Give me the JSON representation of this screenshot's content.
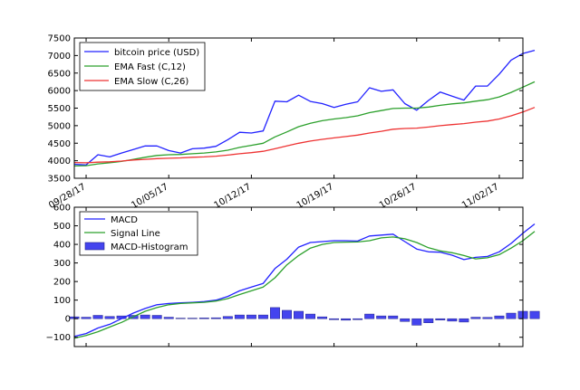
{
  "colors": {
    "price": "#2222ff",
    "fast": "#2ca02c",
    "slow": "#ee3333",
    "macd": "#2222ff",
    "signal": "#2ca02c",
    "hist": "#4444ee"
  },
  "chart_data": [
    {
      "type": "line",
      "title": "",
      "xlabel": "",
      "ylabel": "",
      "ylim": [
        3500,
        7500
      ],
      "yticks": [
        3500,
        4000,
        4500,
        5000,
        5500,
        6000,
        6500,
        7000,
        7500
      ],
      "xtick_labels": [
        {
          "label": "09/28/17",
          "x": 1
        },
        {
          "label": "10/05/17",
          "x": 8
        },
        {
          "label": "10/12/17",
          "x": 15
        },
        {
          "label": "10/19/17",
          "x": 22
        },
        {
          "label": "10/26/17",
          "x": 29
        },
        {
          "label": "11/02/17",
          "x": 36
        }
      ],
      "xlim": [
        0,
        38
      ],
      "series": [
        {
          "name": "bitcoin price (USD)",
          "color_key": "price",
          "values": [
            3900,
            3880,
            4170,
            4110,
            4220,
            4320,
            4420,
            4420,
            4290,
            4220,
            4340,
            4360,
            4410,
            4600,
            4810,
            4790,
            4850,
            5700,
            5680,
            5870,
            5690,
            5630,
            5520,
            5610,
            5680,
            6080,
            5980,
            6020,
            5630,
            5440,
            5720,
            5960,
            5840,
            5730,
            6130,
            6130,
            6470,
            6870,
            7060,
            7150
          ]
        },
        {
          "name": "EMA Fast (C,12)",
          "color_key": "fast",
          "values": [
            3850,
            3860,
            3910,
            3940,
            3980,
            4040,
            4100,
            4150,
            4170,
            4180,
            4200,
            4220,
            4250,
            4300,
            4380,
            4440,
            4500,
            4680,
            4820,
            4970,
            5070,
            5140,
            5190,
            5230,
            5280,
            5370,
            5430,
            5490,
            5500,
            5500,
            5530,
            5580,
            5620,
            5650,
            5700,
            5740,
            5820,
            5950,
            6100,
            6250
          ]
        },
        {
          "name": "EMA Slow (C,26)",
          "color_key": "slow",
          "values": [
            3950,
            3940,
            3960,
            3970,
            3990,
            4020,
            4040,
            4060,
            4070,
            4080,
            4100,
            4110,
            4130,
            4160,
            4200,
            4230,
            4270,
            4340,
            4420,
            4500,
            4560,
            4610,
            4650,
            4690,
            4730,
            4790,
            4840,
            4900,
            4920,
            4930,
            4960,
            5000,
            5030,
            5060,
            5100,
            5130,
            5190,
            5280,
            5390,
            5520
          ]
        }
      ]
    },
    {
      "type": "line",
      "title": "",
      "ylim": [
        -150,
        600
      ],
      "yticks": [
        -100,
        0,
        100,
        200,
        300,
        400,
        500,
        600
      ],
      "xlim": [
        0,
        38
      ],
      "series": [
        {
          "name": "MACD",
          "color_key": "macd",
          "values": [
            -95,
            -80,
            -50,
            -30,
            0,
            30,
            55,
            75,
            82,
            85,
            88,
            92,
            100,
            120,
            150,
            170,
            190,
            270,
            320,
            385,
            410,
            415,
            420,
            420,
            418,
            445,
            450,
            455,
            415,
            375,
            360,
            358,
            342,
            318,
            330,
            335,
            360,
            405,
            460,
            510
          ]
        },
        {
          "name": "Signal Line",
          "color_key": "signal",
          "values": [
            -105,
            -90,
            -70,
            -45,
            -20,
            10,
            40,
            60,
            75,
            82,
            85,
            88,
            95,
            108,
            130,
            150,
            170,
            220,
            290,
            340,
            380,
            400,
            410,
            412,
            413,
            420,
            435,
            440,
            430,
            410,
            382,
            365,
            355,
            340,
            322,
            328,
            345,
            380,
            420,
            470
          ]
        },
        {
          "name": "MACD-Histogram",
          "color_key": "hist",
          "kind": "bar",
          "values": [
            10,
            8,
            18,
            12,
            15,
            18,
            20,
            18,
            8,
            3,
            3,
            4,
            5,
            12,
            20,
            20,
            20,
            60,
            45,
            40,
            25,
            10,
            -5,
            -8,
            -5,
            25,
            15,
            15,
            -15,
            -35,
            -22,
            -7,
            -13,
            -18,
            8,
            7,
            15,
            30,
            40,
            40
          ]
        }
      ]
    }
  ]
}
